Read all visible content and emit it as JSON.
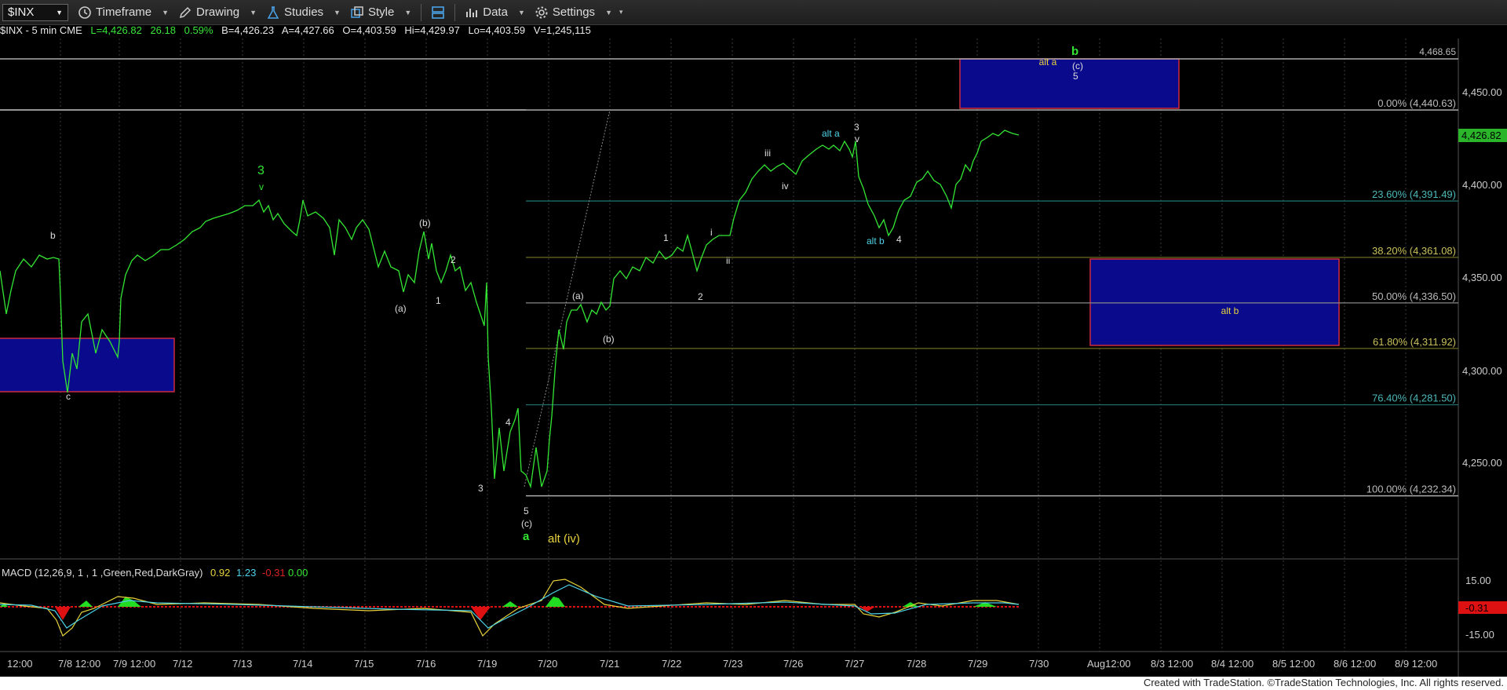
{
  "toolbar": {
    "symbol": "$INX",
    "timeframe": "Timeframe",
    "drawing": "Drawing",
    "studies": "Studies",
    "style": "Style",
    "data": "Data",
    "settings": "Settings"
  },
  "infobar": {
    "symbol_info": "$INX - 5 min  CME",
    "last": "L=4,426.82",
    "change": "26.18",
    "change_pct": "0.59%",
    "bid": "B=4,426.23",
    "ask": "A=4,427.66",
    "open": "O=4,403.59",
    "high": "Hi=4,429.97",
    "low": "Lo=4,403.59",
    "volume": "V=1,245,115"
  },
  "macd": {
    "label": "MACD (12,26,9, 1 , 1 ,Green,Red,DarkGray)",
    "v1": "0.92",
    "v2": "1.23",
    "v3": "-0.31",
    "v4": "0.00",
    "axis_top": "15.00",
    "axis_bottom": "-15.00",
    "current": "-0.31"
  },
  "price_axis": {
    "ticks": [
      "4,450.00",
      "4,400.00",
      "4,350.00",
      "4,300.00",
      "4,250.00"
    ],
    "current_price": "4,426.82"
  },
  "time_axis": [
    "12:00",
    "7/8 12:00",
    "7/9 12:00",
    "7/12",
    "7/13",
    "7/14",
    "7/15",
    "7/16",
    "7/19",
    "7/20",
    "7/21",
    "7/22",
    "7/23",
    "7/26",
    "7/27",
    "7/28",
    "7/29",
    "7/30",
    "Aug12:00",
    "8/3 12:00",
    "8/4 12:00",
    "8/5 12:00",
    "8/6 12:00",
    "8/9 12:00"
  ],
  "fib_levels": [
    {
      "label": "0.00% (4,440.63)",
      "value": 4440.63
    },
    {
      "label": "23.60% (4,391.49)",
      "value": 4391.49
    },
    {
      "label": "38.20% (4,361.08)",
      "value": 4361.08
    },
    {
      "label": "50.00% (4,336.50)",
      "value": 4336.5
    },
    {
      "label": "61.80% (4,311.92)",
      "value": 4311.92
    },
    {
      "label": "76.40% (4,281.50)",
      "value": 4281.5
    },
    {
      "label": "100.00% (4,232.34)",
      "value": 4232.34
    }
  ],
  "horizontal_line": {
    "label": "4,468.65",
    "value": 4468.65
  },
  "zones": {
    "top_label": "alt a",
    "alt_b_label": "alt b"
  },
  "wave_labels": {
    "b_left": "b",
    "c_left": "c",
    "three_green": "3",
    "v_green": "v",
    "b_paren": "(b)",
    "two": "2",
    "a_paren": "(a)",
    "one": "1",
    "four": "4",
    "three": "3",
    "five": "5",
    "c_paren": "(c)",
    "a_green": "a",
    "alt_iv": "alt (iv)",
    "a_paren2": "(a)",
    "b_paren2": "(b)",
    "one_b": "1",
    "two_b": "2",
    "i": "i",
    "ii": "ii",
    "iii": "iii",
    "iv": "iv",
    "alt_a": "alt a",
    "three_b": "3",
    "v_b": "v",
    "alt_b": "alt b",
    "four_b": "4",
    "b_green": "b",
    "c_paren2": "(c)",
    "five_b": "5"
  },
  "footer": "Created with TradeStation. ©TradeStation Technologies, Inc. All rights reserved.",
  "colors": {
    "price_line": "#33e633",
    "zone_fill": "#0a0a8c",
    "zone_border": "#cc2a3c",
    "macd_up": "#22dd22",
    "macd_down": "#dd1111"
  }
}
